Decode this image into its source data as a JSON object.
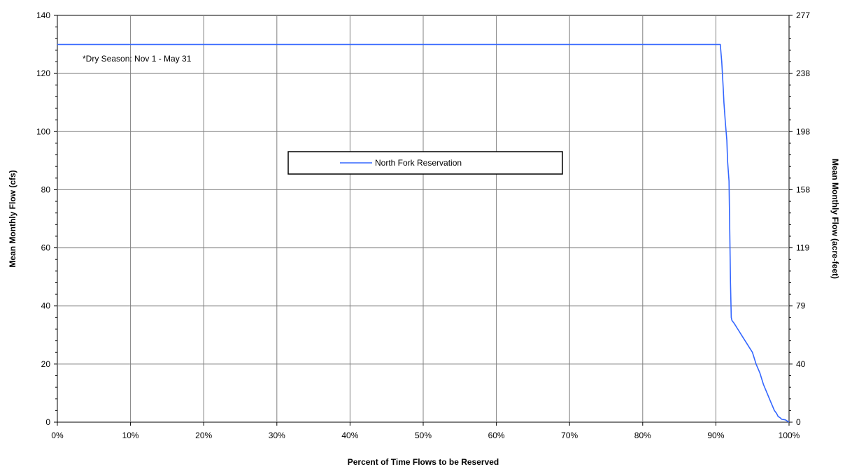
{
  "chart_data": {
    "type": "line",
    "title": "",
    "xlabel": "Percent of Time Flows to be Reserved",
    "ylabel": "Mean Monthly Flow (cfs)",
    "y2label": "Mean Monthly Flow (acre-feet)",
    "annotation": "*Dry Season: Nov 1 - May 31",
    "xlim": [
      0,
      100
    ],
    "ylim": [
      0,
      140
    ],
    "x_ticks": [
      0,
      10,
      20,
      30,
      40,
      50,
      60,
      70,
      80,
      90,
      100
    ],
    "x_tick_labels": [
      "0%",
      "10%",
      "20%",
      "30%",
      "40%",
      "50%",
      "60%",
      "70%",
      "80%",
      "90%",
      "100%"
    ],
    "y_ticks": [
      0,
      20,
      40,
      60,
      80,
      100,
      120,
      140
    ],
    "y_tick_labels": [
      "0",
      "20",
      "40",
      "60",
      "80",
      "100",
      "120",
      "140"
    ],
    "y2_tick_labels": [
      "0",
      "40",
      "79",
      "119",
      "158",
      "198",
      "238",
      "277"
    ],
    "grid": true,
    "legend_position": "center",
    "series": [
      {
        "name": "North Fork Reservation",
        "color": "#3366ff",
        "x": [
          0,
          90.6,
          90.8,
          91.0,
          91.1,
          91.3,
          91.5,
          91.6,
          91.8,
          91.9,
          92.0,
          92.1,
          92.2,
          92.5,
          93.0,
          93.5,
          94.0,
          94.5,
          95.0,
          95.5,
          96.0,
          96.5,
          97.0,
          97.5,
          98.0,
          98.3,
          98.5,
          98.8,
          99.0,
          99.5,
          100
        ],
        "y": [
          130,
          130,
          124,
          115,
          110,
          103,
          97,
          90,
          83,
          65,
          48,
          36,
          35,
          34,
          32,
          30,
          28,
          26,
          24,
          20,
          17,
          13,
          10,
          7,
          4,
          3,
          2,
          1.5,
          1,
          0.8,
          0
        ]
      }
    ]
  }
}
